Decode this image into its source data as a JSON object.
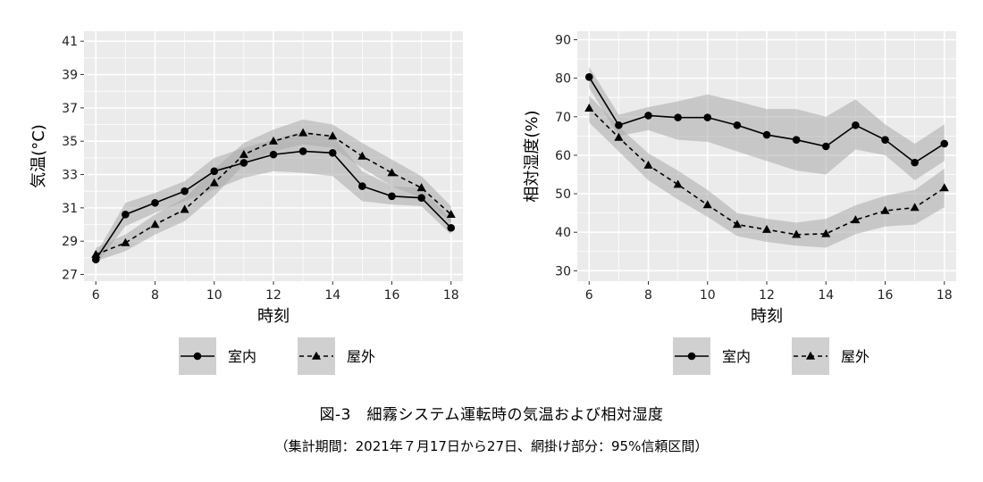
{
  "chart_data": [
    {
      "type": "line",
      "x": [
        6,
        7,
        8,
        9,
        10,
        11,
        12,
        13,
        14,
        15,
        16,
        17,
        18
      ],
      "xlabel": "時刻",
      "ylabel": "気温(°C)",
      "xlim": [
        5.6,
        18.4
      ],
      "ylim": [
        26.6,
        41.6
      ],
      "xticks": [
        6,
        8,
        10,
        12,
        14,
        16,
        18
      ],
      "yticks": [
        27,
        29,
        31,
        33,
        35,
        37,
        39,
        41
      ],
      "grid": true,
      "legend_position": "bottom",
      "series": [
        {
          "name": "室内",
          "marker": "circle",
          "line": "solid",
          "values": [
            27.9,
            30.6,
            31.3,
            32.0,
            33.2,
            33.7,
            34.2,
            34.4,
            34.3,
            32.3,
            31.7,
            31.6,
            29.8
          ],
          "ci_lower": [
            27.6,
            29.9,
            30.7,
            31.4,
            32.1,
            32.8,
            33.2,
            33.1,
            32.9,
            31.4,
            31.2,
            31.1,
            29.4
          ],
          "ci_upper": [
            28.2,
            31.3,
            31.9,
            32.6,
            34.0,
            34.6,
            35.1,
            35.6,
            35.3,
            33.2,
            32.3,
            32.2,
            30.3
          ]
        },
        {
          "name": "屋外",
          "marker": "triangle",
          "line": "dashed",
          "values": [
            28.2,
            28.9,
            30.0,
            30.9,
            32.5,
            34.2,
            35.0,
            35.5,
            35.3,
            34.1,
            33.1,
            32.2,
            30.6
          ],
          "ci_lower": [
            27.8,
            28.4,
            29.4,
            30.2,
            31.7,
            33.6,
            34.4,
            34.8,
            34.6,
            33.4,
            32.3,
            31.6,
            30.1
          ],
          "ci_upper": [
            28.6,
            29.4,
            30.6,
            31.6,
            33.3,
            34.9,
            35.7,
            36.3,
            36.0,
            34.9,
            33.9,
            32.9,
            31.1
          ]
        }
      ]
    },
    {
      "type": "line",
      "x": [
        6,
        7,
        8,
        9,
        10,
        11,
        12,
        13,
        14,
        15,
        16,
        17,
        18
      ],
      "xlabel": "時刻",
      "ylabel": "相対湿度(%)",
      "xlim": [
        5.6,
        18.4
      ],
      "ylim": [
        27.3,
        92.2
      ],
      "xticks": [
        6,
        8,
        10,
        12,
        14,
        16,
        18
      ],
      "yticks": [
        30,
        40,
        50,
        60,
        70,
        80,
        90
      ],
      "grid": true,
      "legend_position": "bottom",
      "series": [
        {
          "name": "室内",
          "marker": "circle",
          "line": "solid",
          "values": [
            80.3,
            67.8,
            70.3,
            69.8,
            69.8,
            67.8,
            65.3,
            64.0,
            62.3,
            67.8,
            64.0,
            58.1,
            63.0
          ],
          "ci_lower": [
            77.5,
            65.0,
            66.5,
            64.0,
            63.5,
            61.0,
            58.5,
            56.0,
            55.0,
            61.5,
            60.0,
            53.5,
            58.5
          ],
          "ci_upper": [
            83.0,
            70.5,
            72.5,
            74.0,
            75.8,
            74.0,
            72.0,
            72.0,
            70.0,
            74.5,
            68.0,
            63.0,
            68.0
          ]
        },
        {
          "name": "屋外",
          "marker": "triangle",
          "line": "dashed",
          "values": [
            72.2,
            64.6,
            57.4,
            52.4,
            47.1,
            42.0,
            40.7,
            39.4,
            39.6,
            43.2,
            45.6,
            46.4,
            51.5
          ],
          "ci_lower": [
            68.5,
            61.0,
            53.5,
            48.5,
            44.0,
            39.0,
            37.5,
            36.5,
            36.0,
            39.5,
            41.5,
            42.0,
            46.5
          ],
          "ci_upper": [
            75.5,
            67.5,
            60.5,
            56.0,
            51.0,
            45.0,
            43.5,
            42.5,
            43.5,
            47.0,
            49.5,
            51.0,
            56.5
          ]
        }
      ]
    }
  ],
  "caption": {
    "title": "図-3　細霧システム運転時の気温および相対湿度",
    "subtitle": "（集計期間：2021年７月17日から27日、網掛け部分：95%信頼区間）"
  },
  "colors": {
    "panel_bg": "#ebebeb",
    "grid": "#ffffff",
    "band": "#a9a9a9",
    "line": "#000000"
  }
}
